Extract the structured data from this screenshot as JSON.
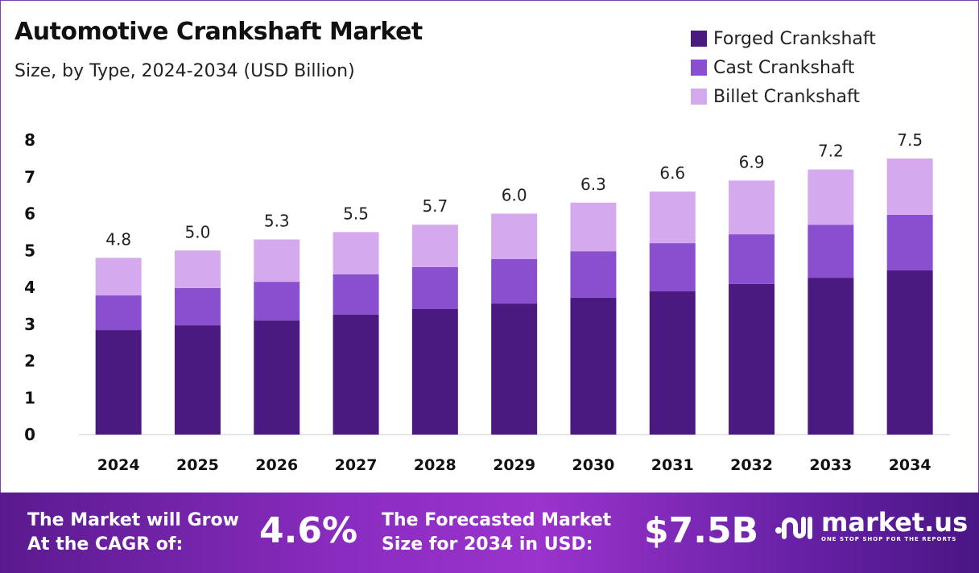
{
  "chart_data": {
    "type": "bar",
    "stacked": true,
    "title": "Automotive Crankshaft Market",
    "subtitle": "Size, by Type, 2024-2034 (USD Billion)",
    "categories": [
      "2024",
      "2025",
      "2026",
      "2027",
      "2028",
      "2029",
      "2030",
      "2031",
      "2032",
      "2033",
      "2034"
    ],
    "series": [
      {
        "name": "Forged Crankshaft",
        "color": "#4b1a80",
        "values": [
          2.84,
          2.97,
          3.1,
          3.26,
          3.41,
          3.56,
          3.72,
          3.89,
          4.09,
          4.26,
          4.46
        ]
      },
      {
        "name": "Cast Crankshaft",
        "color": "#8a4fcf",
        "values": [
          0.94,
          1.01,
          1.05,
          1.09,
          1.14,
          1.21,
          1.26,
          1.31,
          1.35,
          1.44,
          1.51
        ]
      },
      {
        "name": "Billet Crankshaft",
        "color": "#d4a9ee",
        "values": [
          1.02,
          1.02,
          1.15,
          1.15,
          1.15,
          1.23,
          1.32,
          1.4,
          1.46,
          1.5,
          1.53
        ]
      }
    ],
    "totals": [
      "4.8",
      "5.0",
      "5.3",
      "5.5",
      "5.7",
      "6.0",
      "6.3",
      "6.6",
      "6.9",
      "7.2",
      "7.5"
    ],
    "ylim": [
      0,
      8
    ],
    "yticks": [
      "0",
      "1",
      "2",
      "3",
      "4",
      "5",
      "6",
      "7",
      "8"
    ],
    "grid": false,
    "legend_position": "top-right"
  },
  "footer": {
    "cagr_label_1": "The Market will Grow",
    "cagr_label_2": "At the CAGR of:",
    "cagr_value": "4.6%",
    "size_label_1": "The Forecasted Market",
    "size_label_2": "Size for 2034 in USD:",
    "size_value": "$7.5B",
    "logo_name": "market.us",
    "logo_tagline": "ONE STOP SHOP FOR THE REPORTS"
  }
}
